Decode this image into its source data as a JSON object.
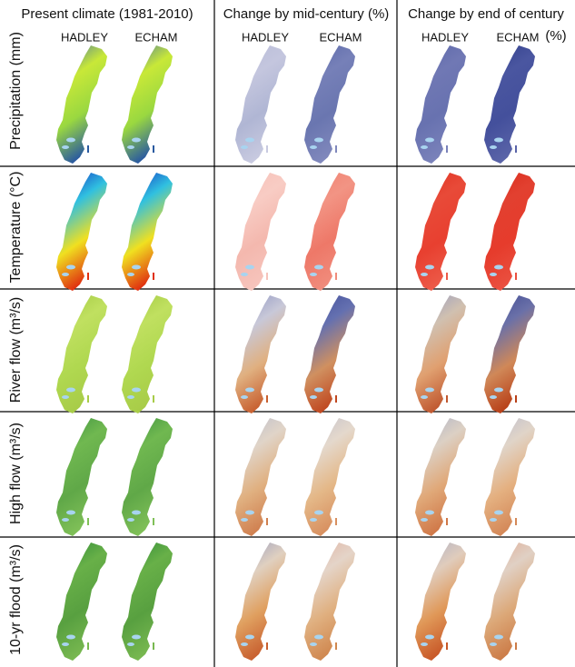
{
  "columns": [
    {
      "title": "Present climate (1981-2010)",
      "models": [
        "HADLEY",
        "ECHAM"
      ]
    },
    {
      "title": "Change by mid-century (%)",
      "models": [
        "HADLEY",
        "ECHAM"
      ]
    },
    {
      "title": "Change by end of century",
      "unit": "(%)",
      "models": [
        "HADLEY",
        "ECHAM"
      ]
    }
  ],
  "rows": [
    "Precipitation (mm)",
    "Temperature (°C)",
    "River flow (m³/s)",
    "High flow (m³/s)",
    "10-yr flood (m³/s)"
  ]
}
